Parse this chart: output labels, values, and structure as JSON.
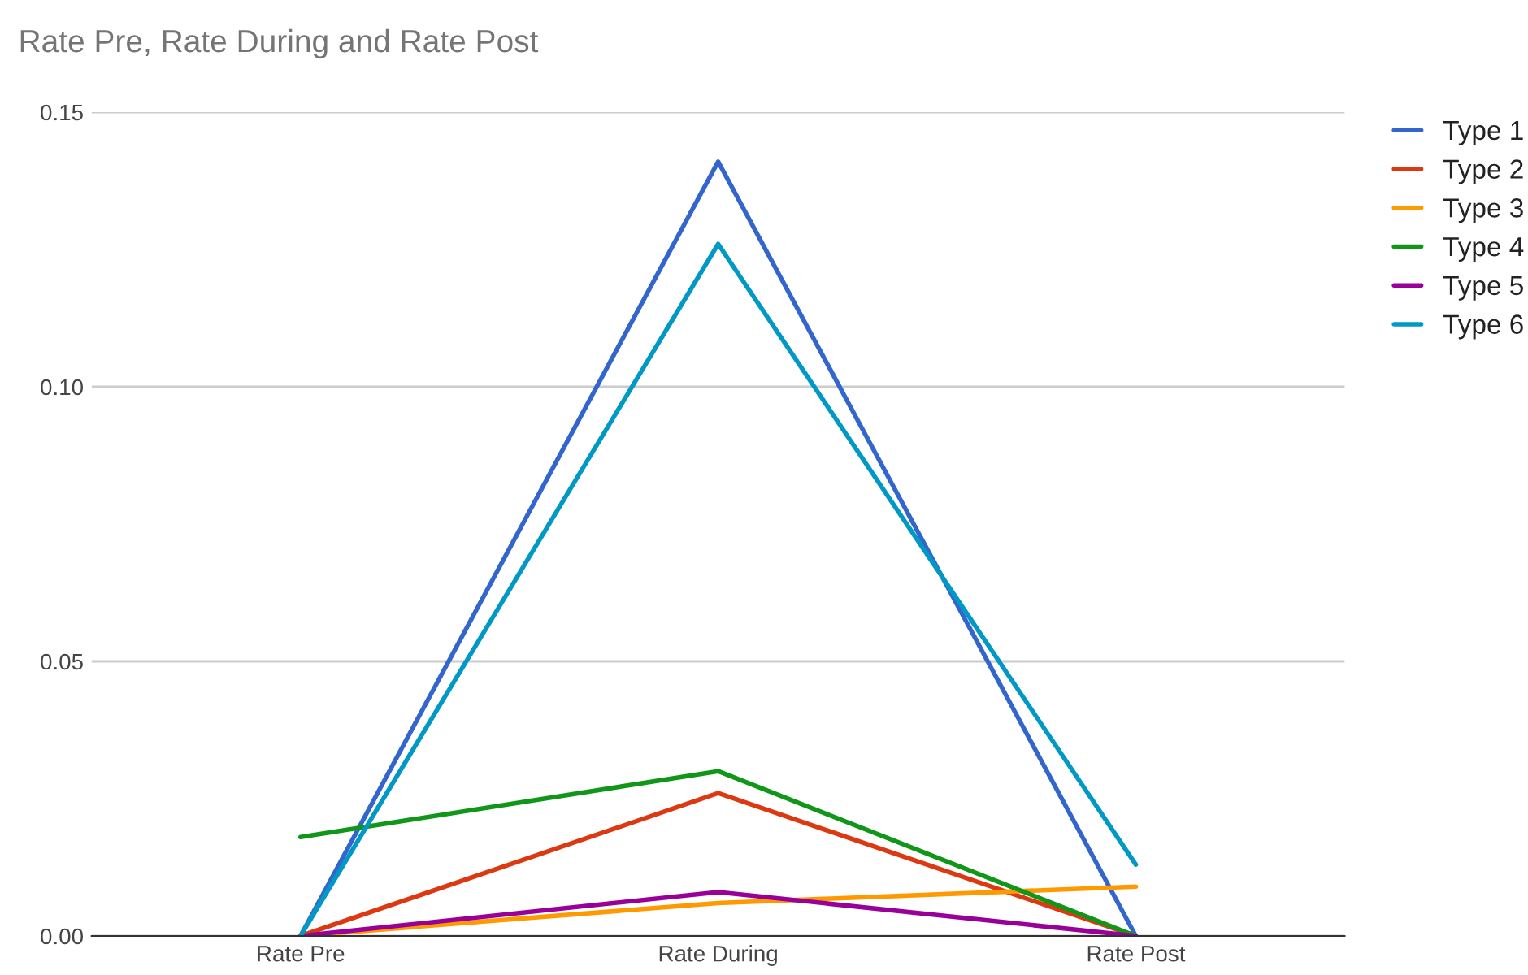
{
  "chart_data": {
    "type": "line",
    "title": "Rate Pre, Rate During and Rate Post",
    "categories": [
      "Rate Pre",
      "Rate During",
      "Rate Post"
    ],
    "series": [
      {
        "name": "Type 1",
        "color": "#3366cc",
        "values": [
          0,
          0.141,
          0
        ]
      },
      {
        "name": "Type 2",
        "color": "#dc3912",
        "values": [
          0,
          0.026,
          0
        ]
      },
      {
        "name": "Type 3",
        "color": "#ff9900",
        "values": [
          0,
          0.006,
          0.009
        ]
      },
      {
        "name": "Type 4",
        "color": "#109618",
        "values": [
          0.018,
          0.03,
          0
        ]
      },
      {
        "name": "Type 5",
        "color": "#990099",
        "values": [
          0,
          0.008,
          0
        ]
      },
      {
        "name": "Type 6",
        "color": "#0099c6",
        "values": [
          0,
          0.126,
          0.013
        ]
      }
    ],
    "ylim": [
      0,
      0.15
    ],
    "yticks": [
      {
        "value": 0,
        "label": "0.00"
      },
      {
        "value": 0.05,
        "label": "0.05"
      },
      {
        "value": 0.1,
        "label": "0.10"
      },
      {
        "value": 0.15,
        "label": "0.15"
      }
    ],
    "grid": "y",
    "legend": "top right",
    "marker": "none",
    "line_style": "solid"
  }
}
